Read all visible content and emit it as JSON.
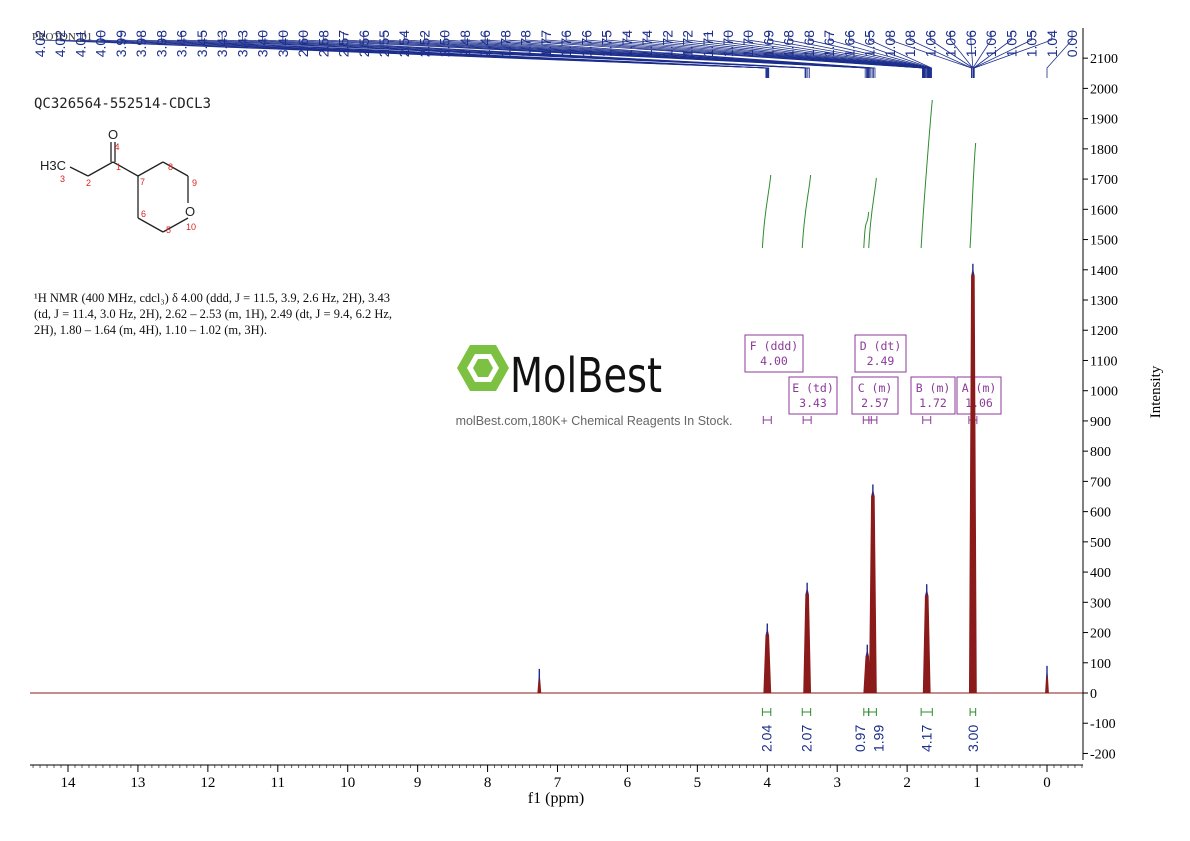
{
  "top_left_label": "PROTON_01",
  "sample_title": "QC326564-552514-CDCL3",
  "molecule": {
    "atoms": [
      "O",
      "4",
      "H3C",
      "3",
      "2",
      "1",
      "7",
      "8",
      "9",
      "O",
      "10",
      "5",
      "6"
    ]
  },
  "nmr_description": "¹H NMR (400 MHz, cdcl₃) δ 4.00 (ddd, J = 11.5, 3.9, 2.6 Hz, 2H), 3.43 (td, J = 11.4, 3.0 Hz, 2H), 2.62 – 2.53 (m, 1H), 2.49 (dt, J = 9.4, 6.2 Hz, 2H), 1.80 – 1.64 (m, 4H), 1.10 – 1.02 (m, 3H).",
  "watermark": {
    "brand": "MolBest",
    "tagline": "molBest.com,180K+ Chemical Reagents In Stock."
  },
  "colors": {
    "spectrum": "#8b1a1a",
    "peak_labels": "#1c2e8c",
    "integral": "#2e8b2e",
    "multiplet_box": "#8b3a9a",
    "watermark_green": "#7dc142"
  },
  "chart_data": {
    "type": "line",
    "title": "",
    "xlabel": "f1 (ppm)",
    "ylabel": "Intensity",
    "x_reversed": true,
    "xlim": [
      14.5,
      -0.5
    ],
    "ylim": [
      -200,
      2150
    ],
    "x_ticks": [
      "14",
      "13",
      "12",
      "11",
      "10",
      "9",
      "8",
      "7",
      "6",
      "5",
      "4",
      "3",
      "2",
      "1",
      "0"
    ],
    "y_ticks": [
      "2100",
      "2000",
      "1900",
      "1800",
      "1700",
      "1600",
      "1500",
      "1400",
      "1300",
      "1200",
      "1100",
      "1000",
      "900",
      "800",
      "700",
      "600",
      "500",
      "400",
      "300",
      "200",
      "100",
      "0",
      "-100",
      "-200"
    ],
    "peak_shift_labels": [
      "4.02",
      "4.02",
      "4.01",
      "4.00",
      "3.99",
      "3.98",
      "3.98",
      "3.46",
      "3.45",
      "3.43",
      "3.43",
      "3.40",
      "3.40",
      "2.60",
      "2.58",
      "2.57",
      "2.56",
      "2.55",
      "2.54",
      "2.52",
      "2.50",
      "2.48",
      "2.46",
      "1.78",
      "1.78",
      "1.77",
      "1.76",
      "1.76",
      "1.75",
      "1.74",
      "1.74",
      "1.72",
      "1.72",
      "1.71",
      "1.70",
      "1.70",
      "1.69",
      "1.68",
      "1.68",
      "1.67",
      "1.66",
      "1.65",
      "1.08",
      "1.08",
      "1.06",
      "1.06",
      "1.06",
      "1.06",
      "1.05",
      "1.05",
      "1.04",
      "0.00"
    ],
    "peaks": [
      {
        "ppm": 7.26,
        "height": 60
      },
      {
        "ppm": 4.0,
        "height": 210
      },
      {
        "ppm": 3.43,
        "height": 345
      },
      {
        "ppm": 2.57,
        "height": 140
      },
      {
        "ppm": 2.49,
        "height": 670
      },
      {
        "ppm": 1.72,
        "height": 340
      },
      {
        "ppm": 1.06,
        "height": 1400
      },
      {
        "ppm": 0.0,
        "height": 70
      }
    ],
    "integrals": [
      {
        "from": 4.07,
        "to": 3.95,
        "value": "2.04"
      },
      {
        "from": 3.5,
        "to": 3.38,
        "value": "2.07"
      },
      {
        "from": 2.62,
        "to": 2.55,
        "value": "0.97"
      },
      {
        "from": 2.55,
        "to": 2.44,
        "value": "1.99"
      },
      {
        "from": 1.8,
        "to": 1.64,
        "value": "4.17"
      },
      {
        "from": 1.1,
        "to": 1.02,
        "value": "3.00"
      }
    ],
    "multiplets": [
      {
        "label": "F (ddd)",
        "shift": "4.00",
        "ppm": 4.0
      },
      {
        "label": "E (td)",
        "shift": "3.43",
        "ppm": 3.43
      },
      {
        "label": "D (dt)",
        "shift": "2.49",
        "ppm": 2.49
      },
      {
        "label": "C (m)",
        "shift": "2.57",
        "ppm": 2.57
      },
      {
        "label": "B (m)",
        "shift": "1.72",
        "ppm": 1.72
      },
      {
        "label": "A (m)",
        "shift": "1.06",
        "ppm": 1.06
      }
    ]
  }
}
